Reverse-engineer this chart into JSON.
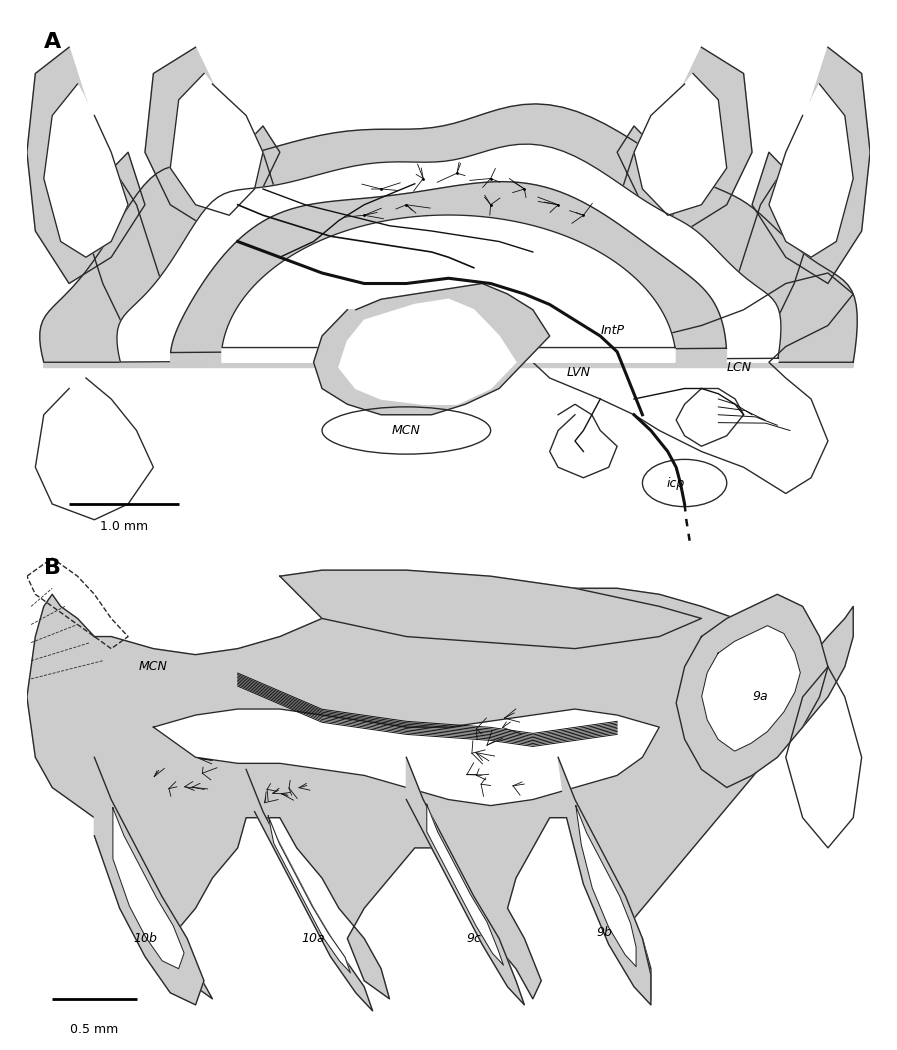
{
  "panel_A_label": "A",
  "panel_B_label": "B",
  "scale_bar_A": "1.0 mm",
  "scale_bar_B": "0.5 mm",
  "bg_color": "#ffffff",
  "line_color": "#2a2a2a",
  "gray_fill": "#cccccc",
  "gray_fill2": "#c0c0c0",
  "neuron_color": "#111111",
  "label_fontsize": 9,
  "panel_label_fontsize": 16
}
